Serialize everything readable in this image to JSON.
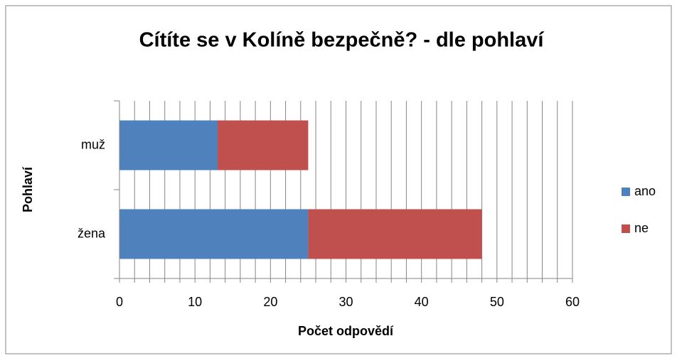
{
  "chart_data": {
    "type": "stacked_barh",
    "title": "Cítíte se v Kolíně bezpečně? - dle pohlaví",
    "xlabel": "Počet odpovědí",
    "ylabel": "Pohlaví",
    "categories": [
      "muž",
      "žena"
    ],
    "series": [
      {
        "name": "ano",
        "color": "#4f81bd",
        "values": [
          13,
          25
        ]
      },
      {
        "name": "ne",
        "color": "#c0504d",
        "values": [
          12,
          23
        ]
      }
    ],
    "xlim": [
      0,
      60
    ],
    "xticks": [
      0,
      10,
      20,
      30,
      40,
      50,
      60
    ],
    "xticks_minor": [
      2,
      4,
      6,
      8,
      12,
      14,
      16,
      18,
      22,
      24,
      26,
      28,
      32,
      34,
      36,
      38,
      42,
      44,
      46,
      48,
      52,
      54,
      56,
      58
    ],
    "grid": true,
    "legend": "right"
  }
}
